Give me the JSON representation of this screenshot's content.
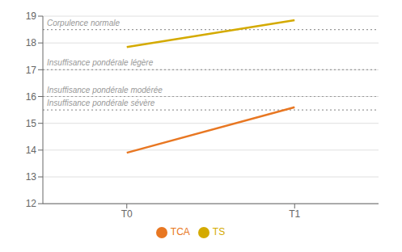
{
  "chart_data": {
    "type": "line",
    "categories": [
      "T0",
      "T1"
    ],
    "series": [
      {
        "name": "TCA",
        "color": "#E87722",
        "marker": "none",
        "values": [
          13.9,
          15.6
        ]
      },
      {
        "name": "TS",
        "color": "#D4AA00",
        "marker": "none",
        "values": [
          17.85,
          18.85
        ]
      }
    ],
    "ylim": [
      12,
      19
    ],
    "yticks": [
      12,
      13,
      14,
      15,
      16,
      17,
      18,
      19
    ],
    "grid": true,
    "annotations": [
      {
        "text": "Corpulence normale",
        "y": 18.5,
        "color": "#999999",
        "line_style": "dotted"
      },
      {
        "text": "Insuffisance pondérale légère",
        "y": 17.0,
        "color": "#999999",
        "line_style": "dotted"
      },
      {
        "text": "Insuffisance pondérale modérée",
        "y": 16.0,
        "color": "#999999",
        "line_style": "dotted"
      },
      {
        "text": "Insuffisance pondérale sévère",
        "y": 15.5,
        "color": "#999999",
        "line_style": "dotted"
      }
    ]
  }
}
